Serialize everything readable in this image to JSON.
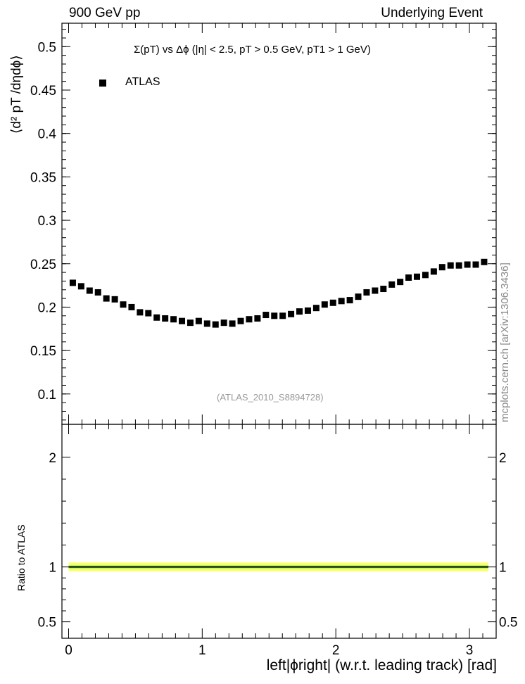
{
  "header": {
    "left": "900 GeV pp",
    "right": "Underlying Event",
    "side_credit": "mcplots.cern.ch [arXiv:1306.3436]"
  },
  "labels": {
    "ylabel_top": "⟨d² pT /dηdϕ⟩",
    "ylabel_bottom": "Ratio to ATLAS",
    "xlabel": "left|ϕright| (w.r.t. leading track) [rad]",
    "analysis_id": "(ATLAS_2010_S8894728)"
  },
  "colors": {
    "marker": "#000000",
    "band_outer": "#ffff66",
    "band_inner": "#99ff66",
    "ratio_line": "#000000",
    "frame": "#000000",
    "analysis_text": "#999999"
  },
  "chart_data": [
    {
      "type": "scatter",
      "title": "Σ(pT) vs Δϕ (|η| < 2.5, pT > 0.5 GeV, pT1 > 1 GeV)",
      "legend": [
        "ATLAS"
      ],
      "legend_position": "top-left",
      "xlim": [
        -0.05,
        3.2
      ],
      "ylim": [
        0.065,
        0.527
      ],
      "yticks": [
        0.1,
        0.15,
        0.2,
        0.25,
        0.3,
        0.35,
        0.4,
        0.45,
        0.5
      ],
      "ytick_labels": [
        "0.1",
        "0.15",
        "0.2",
        "0.25",
        "0.3",
        "0.35",
        "0.4",
        "0.45",
        "0.5"
      ],
      "grid": false,
      "series": [
        {
          "name": "ATLAS",
          "x": [
            0.0314,
            0.0942,
            0.1571,
            0.2199,
            0.2827,
            0.3456,
            0.4084,
            0.4712,
            0.5341,
            0.5969,
            0.6597,
            0.7226,
            0.7854,
            0.8482,
            0.9111,
            0.9739,
            1.0367,
            1.0996,
            1.1624,
            1.2252,
            1.2881,
            1.3509,
            1.4137,
            1.4765,
            1.5394,
            1.6022,
            1.665,
            1.7279,
            1.7907,
            1.8535,
            1.9164,
            1.9792,
            2.042,
            2.1049,
            2.1677,
            2.2305,
            2.2934,
            2.3562,
            2.419,
            2.4819,
            2.5447,
            2.6075,
            2.6704,
            2.7332,
            2.796,
            2.8588,
            2.9217,
            2.9845,
            3.0473,
            3.1102
          ],
          "y": [
            0.228,
            0.224,
            0.219,
            0.217,
            0.21,
            0.209,
            0.203,
            0.2,
            0.194,
            0.193,
            0.188,
            0.187,
            0.186,
            0.184,
            0.182,
            0.184,
            0.181,
            0.18,
            0.182,
            0.181,
            0.184,
            0.186,
            0.187,
            0.191,
            0.19,
            0.19,
            0.192,
            0.195,
            0.196,
            0.199,
            0.203,
            0.205,
            0.207,
            0.208,
            0.212,
            0.217,
            0.219,
            0.221,
            0.226,
            0.229,
            0.234,
            0.235,
            0.237,
            0.241,
            0.246,
            0.248,
            0.248,
            0.249,
            0.249,
            0.252
          ]
        }
      ]
    },
    {
      "type": "line",
      "ylabel": "Ratio to ATLAS",
      "xlabel": "left|ϕright| (w.r.t. leading track) [rad]",
      "xlim": [
        -0.05,
        3.2
      ],
      "xticks": [
        0,
        1,
        2,
        3
      ],
      "xtick_labels": [
        "0",
        "1",
        "2",
        "3"
      ],
      "ylim": [
        0.35,
        2.3
      ],
      "yticks": [
        0.5,
        1,
        2
      ],
      "ytick_labels": [
        "0.5",
        "1",
        "2"
      ],
      "series": [
        {
          "name": "ATLAS",
          "x": [
            0.0,
            3.1416
          ],
          "y": [
            1.0,
            1.0
          ],
          "band_inner": [
            0.985,
            1.015
          ],
          "band_outer": [
            0.96,
            1.04
          ]
        }
      ]
    }
  ]
}
